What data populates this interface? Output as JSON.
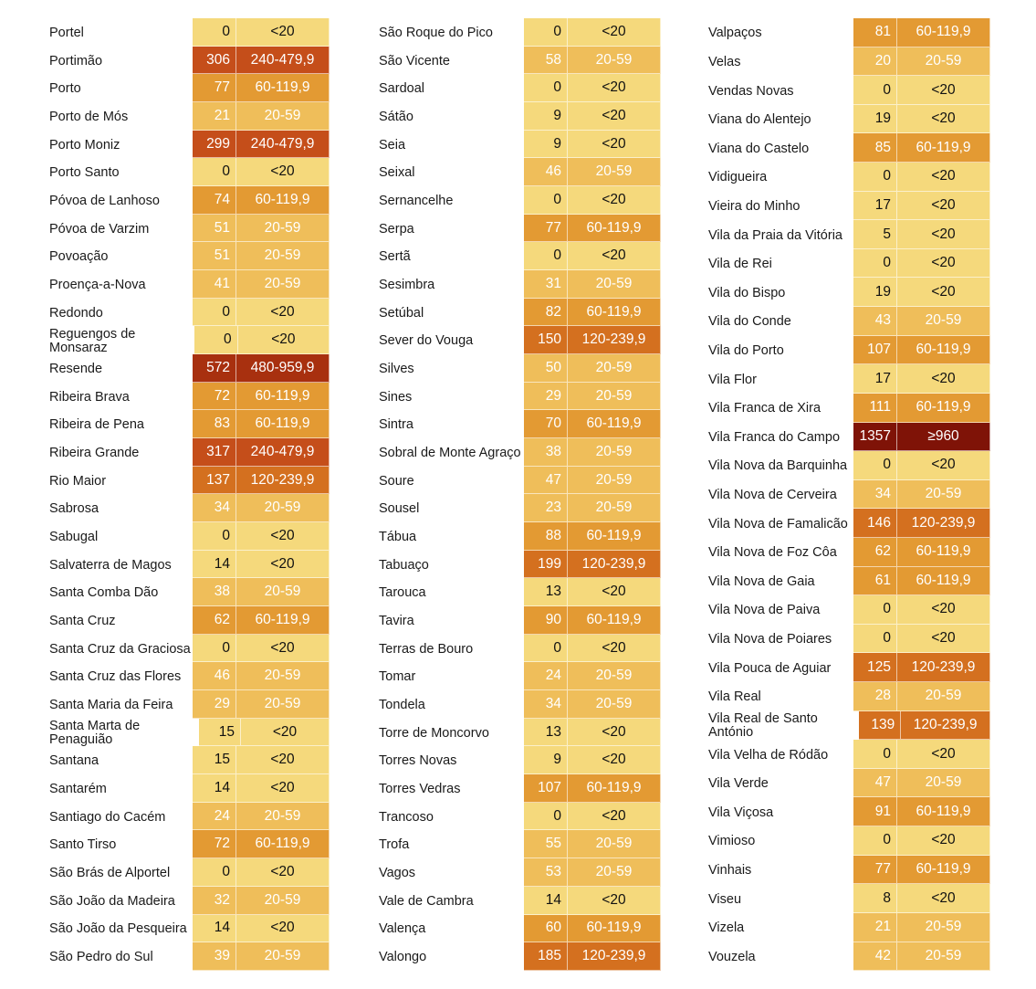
{
  "palette": {
    "<20": "#f5d97c",
    "20-59": "#efbe5a",
    "60-119,9": "#e39a33",
    "120-239,9": "#d4701f",
    "240-479,9": "#c54e1a",
    "480-959,9": "#a8300f",
    "≥960": "#7f1307"
  },
  "columns": [
    [
      {
        "name": "Portel",
        "value": "0",
        "range": "<20"
      },
      {
        "name": "Portimão",
        "value": "306",
        "range": "240-479,9"
      },
      {
        "name": "Porto",
        "value": "77",
        "range": "60-119,9"
      },
      {
        "name": "Porto de Mós",
        "value": "21",
        "range": "20-59"
      },
      {
        "name": "Porto Moniz",
        "value": "299",
        "range": "240-479,9"
      },
      {
        "name": "Porto Santo",
        "value": "0",
        "range": "<20"
      },
      {
        "name": "Póvoa de Lanhoso",
        "value": "74",
        "range": "60-119,9"
      },
      {
        "name": "Póvoa de Varzim",
        "value": "51",
        "range": "20-59"
      },
      {
        "name": "Povoação",
        "value": "51",
        "range": "20-59"
      },
      {
        "name": "Proença-a-Nova",
        "value": "41",
        "range": "20-59"
      },
      {
        "name": "Redondo",
        "value": "0",
        "range": "<20"
      },
      {
        "name": "Reguengos de Monsaraz",
        "value": "0",
        "range": "<20"
      },
      {
        "name": "Resende",
        "value": "572",
        "range": "480-959,9"
      },
      {
        "name": "Ribeira Brava",
        "value": "72",
        "range": "60-119,9"
      },
      {
        "name": "Ribeira de Pena",
        "value": "83",
        "range": "60-119,9"
      },
      {
        "name": "Ribeira Grande",
        "value": "317",
        "range": "240-479,9"
      },
      {
        "name": "Rio Maior",
        "value": "137",
        "range": "120-239,9"
      },
      {
        "name": "Sabrosa",
        "value": "34",
        "range": "20-59"
      },
      {
        "name": "Sabugal",
        "value": "0",
        "range": "<20"
      },
      {
        "name": "Salvaterra de Magos",
        "value": "14",
        "range": "<20"
      },
      {
        "name": "Santa Comba Dão",
        "value": "38",
        "range": "20-59"
      },
      {
        "name": "Santa Cruz",
        "value": "62",
        "range": "60-119,9"
      },
      {
        "name": "Santa Cruz da Graciosa",
        "value": "0",
        "range": "<20"
      },
      {
        "name": "Santa Cruz das Flores",
        "value": "46",
        "range": "20-59"
      },
      {
        "name": "Santa Maria da Feira",
        "value": "29",
        "range": "20-59"
      },
      {
        "name": "Santa Marta de Penaguião",
        "value": "15",
        "range": "<20"
      },
      {
        "name": "Santana",
        "value": "15",
        "range": "<20"
      },
      {
        "name": "Santarém",
        "value": "14",
        "range": "<20"
      },
      {
        "name": "Santiago do Cacém",
        "value": "24",
        "range": "20-59"
      },
      {
        "name": "Santo Tirso",
        "value": "72",
        "range": "60-119,9"
      },
      {
        "name": "São Brás de Alportel",
        "value": "0",
        "range": "<20"
      },
      {
        "name": "São João da Madeira",
        "value": "32",
        "range": "20-59"
      },
      {
        "name": "São João da Pesqueira",
        "value": "14",
        "range": "<20"
      },
      {
        "name": "São Pedro do Sul",
        "value": "39",
        "range": "20-59"
      }
    ],
    [
      {
        "name": "São Roque do Pico",
        "value": "0",
        "range": "<20"
      },
      {
        "name": "São Vicente",
        "value": "58",
        "range": "20-59"
      },
      {
        "name": "Sardoal",
        "value": "0",
        "range": "<20"
      },
      {
        "name": "Sátão",
        "value": "9",
        "range": "<20"
      },
      {
        "name": "Seia",
        "value": "9",
        "range": "<20"
      },
      {
        "name": "Seixal",
        "value": "46",
        "range": "20-59"
      },
      {
        "name": "Sernancelhe",
        "value": "0",
        "range": "<20"
      },
      {
        "name": "Serpa",
        "value": "77",
        "range": "60-119,9"
      },
      {
        "name": "Sertã",
        "value": "0",
        "range": "<20"
      },
      {
        "name": "Sesimbra",
        "value": "31",
        "range": "20-59"
      },
      {
        "name": "Setúbal",
        "value": "82",
        "range": "60-119,9"
      },
      {
        "name": "Sever do Vouga",
        "value": "150",
        "range": "120-239,9"
      },
      {
        "name": "Silves",
        "value": "50",
        "range": "20-59"
      },
      {
        "name": "Sines",
        "value": "29",
        "range": "20-59"
      },
      {
        "name": "Sintra",
        "value": "70",
        "range": "60-119,9"
      },
      {
        "name": "Sobral de Monte Agraço",
        "value": "38",
        "range": "20-59"
      },
      {
        "name": "Soure",
        "value": "47",
        "range": "20-59"
      },
      {
        "name": "Sousel",
        "value": "23",
        "range": "20-59"
      },
      {
        "name": "Tábua",
        "value": "88",
        "range": "60-119,9"
      },
      {
        "name": "Tabuaço",
        "value": "199",
        "range": "120-239,9"
      },
      {
        "name": "Tarouca",
        "value": "13",
        "range": "<20"
      },
      {
        "name": "Tavira",
        "value": "90",
        "range": "60-119,9"
      },
      {
        "name": "Terras de Bouro",
        "value": "0",
        "range": "<20"
      },
      {
        "name": "Tomar",
        "value": "24",
        "range": "20-59"
      },
      {
        "name": "Tondela",
        "value": "34",
        "range": "20-59"
      },
      {
        "name": "Torre de Moncorvo",
        "value": "13",
        "range": "<20"
      },
      {
        "name": "Torres Novas",
        "value": "9",
        "range": "<20"
      },
      {
        "name": "Torres Vedras",
        "value": "107",
        "range": "60-119,9"
      },
      {
        "name": "Trancoso",
        "value": "0",
        "range": "<20"
      },
      {
        "name": "Trofa",
        "value": "55",
        "range": "20-59"
      },
      {
        "name": "Vagos",
        "value": "53",
        "range": "20-59"
      },
      {
        "name": "Vale de Cambra",
        "value": "14",
        "range": "<20"
      },
      {
        "name": "Valença",
        "value": "60",
        "range": "60-119,9"
      },
      {
        "name": "Valongo",
        "value": "185",
        "range": "120-239,9"
      }
    ],
    [
      {
        "name": "Valpaços",
        "value": "81",
        "range": "60-119,9"
      },
      {
        "name": "Velas",
        "value": "20",
        "range": "20-59"
      },
      {
        "name": "Vendas Novas",
        "value": "0",
        "range": "<20"
      },
      {
        "name": "Viana do Alentejo",
        "value": "19",
        "range": "<20"
      },
      {
        "name": "Viana do Castelo",
        "value": "85",
        "range": "60-119,9"
      },
      {
        "name": "Vidigueira",
        "value": "0",
        "range": "<20"
      },
      {
        "name": "Vieira do Minho",
        "value": "17",
        "range": "<20"
      },
      {
        "name": "Vila da Praia da Vitória",
        "value": "5",
        "range": "<20"
      },
      {
        "name": "Vila de Rei",
        "value": "0",
        "range": "<20"
      },
      {
        "name": "Vila do Bispo",
        "value": "19",
        "range": "<20"
      },
      {
        "name": "Vila do Conde",
        "value": "43",
        "range": "20-59"
      },
      {
        "name": "Vila do Porto",
        "value": "107",
        "range": "60-119,9"
      },
      {
        "name": "Vila Flor",
        "value": "17",
        "range": "<20"
      },
      {
        "name": "Vila Franca de Xira",
        "value": "111",
        "range": "60-119,9"
      },
      {
        "name": "Vila Franca do Campo",
        "value": "1357",
        "range": "≥960"
      },
      {
        "name": "Vila Nova da Barquinha",
        "value": "0",
        "range": "<20"
      },
      {
        "name": "Vila Nova de Cerveira",
        "value": "34",
        "range": "20-59"
      },
      {
        "name": "Vila Nova de Famalicão",
        "value": "146",
        "range": "120-239,9"
      },
      {
        "name": "Vila Nova de Foz Côa",
        "value": "62",
        "range": "60-119,9"
      },
      {
        "name": "Vila Nova de Gaia",
        "value": "61",
        "range": "60-119,9"
      },
      {
        "name": "Vila Nova de Paiva",
        "value": "0",
        "range": "<20"
      },
      {
        "name": "Vila Nova de Poiares",
        "value": "0",
        "range": "<20"
      },
      {
        "name": "Vila Pouca de Aguiar",
        "value": "125",
        "range": "120-239,9"
      },
      {
        "name": "Vila Real",
        "value": "28",
        "range": "20-59"
      },
      {
        "name": "Vila Real de Santo António",
        "value": "139",
        "range": "120-239,9"
      },
      {
        "name": "Vila Velha de Ródão",
        "value": "0",
        "range": "<20"
      },
      {
        "name": "Vila Verde",
        "value": "47",
        "range": "20-59"
      },
      {
        "name": "Vila Viçosa",
        "value": "91",
        "range": "60-119,9"
      },
      {
        "name": "Vimioso",
        "value": "0",
        "range": "<20"
      },
      {
        "name": "Vinhais",
        "value": "77",
        "range": "60-119,9"
      },
      {
        "name": "Viseu",
        "value": "8",
        "range": "<20"
      },
      {
        "name": "Vizela",
        "value": "21",
        "range": "20-59"
      },
      {
        "name": "Vouzela",
        "value": "42",
        "range": "20-59"
      }
    ]
  ]
}
